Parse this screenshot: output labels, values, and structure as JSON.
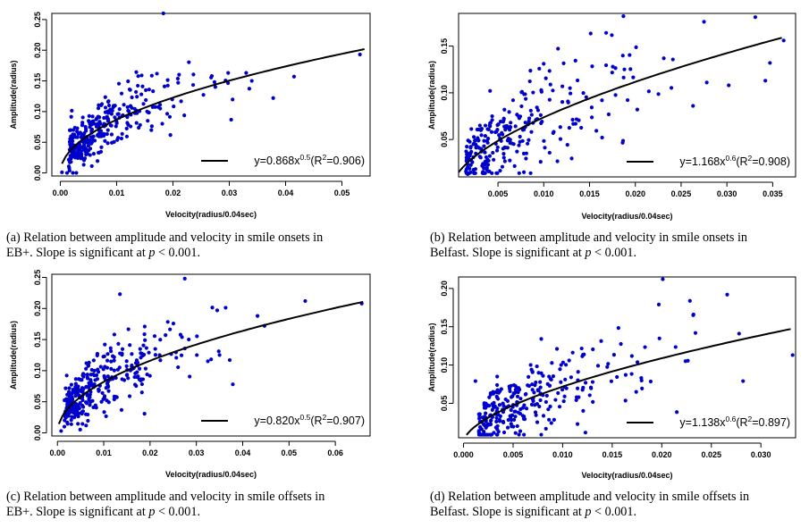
{
  "chart_data": [
    {
      "id": "a",
      "type": "scatter",
      "xlabel": "Velocity(radius/0.04sec)",
      "ylabel": "Amplitude(radius)",
      "xlim": [
        -0.0015,
        0.055
      ],
      "ylim": [
        -0.005,
        0.26
      ],
      "xticks": [
        0.0,
        0.01,
        0.02,
        0.03,
        0.04,
        0.05
      ],
      "xtick_labels": [
        "0.00",
        "0.01",
        "0.02",
        "0.03",
        "0.04",
        "0.05"
      ],
      "yticks": [
        0.0,
        0.05,
        0.1,
        0.15,
        0.2,
        0.25
      ],
      "ytick_labels": [
        "0.00",
        "0.05",
        "0.10",
        "0.15",
        "0.20",
        "0.25"
      ],
      "fit": {
        "coef": 0.868,
        "exp": 0.5
      },
      "legend": {
        "position": "bottom-right",
        "prefix": "y=0.868x",
        "power": "0.5",
        "r2_open": "(R",
        "r2_sq": "2",
        "r2_close": "=0.906)"
      },
      "point_color": "#0000cc",
      "n_points": 320,
      "seed": 11,
      "x_scale": 0.0085,
      "x_max": 0.054,
      "noise": 0.028,
      "outliers": [
        [
          0.0183,
          0.26
        ],
        [
          0.0532,
          0.193
        ],
        [
          0.0415,
          0.157
        ],
        [
          0.0378,
          0.122
        ],
        [
          0.034,
          0.15
        ],
        [
          0.033,
          0.163
        ],
        [
          0.0298,
          0.163
        ],
        [
          0.0269,
          0.158
        ],
        [
          0.0012,
          0.0
        ],
        [
          0.0003,
          0.001
        ]
      ]
    },
    {
      "id": "b",
      "type": "scatter",
      "xlabel": "Velocity(radius/0.04sec)",
      "ylabel": "Amplitude(radius)",
      "xlim": [
        0.0007,
        0.0375
      ],
      "ylim": [
        0.01,
        0.185
      ],
      "xticks": [
        0.005,
        0.01,
        0.015,
        0.02,
        0.025,
        0.03,
        0.035
      ],
      "xtick_labels": [
        "0.005",
        "0.010",
        "0.015",
        "0.020",
        "0.025",
        "0.030",
        "0.035"
      ],
      "yticks": [
        0.05,
        0.1,
        0.15
      ],
      "ytick_labels": [
        "0.05",
        "0.10",
        "0.15"
      ],
      "fit": {
        "coef": 1.168,
        "exp": 0.6
      },
      "legend": {
        "position": "bottom-right",
        "prefix": "y=1.168x",
        "power": "0.6",
        "r2_open": "(R",
        "r2_sq": "2",
        "r2_close": "=0.908)"
      },
      "point_color": "#0000cc",
      "n_points": 270,
      "seed": 23,
      "x_scale": 0.0075,
      "x_max": 0.036,
      "noise": 0.024,
      "outliers": [
        [
          0.0187,
          0.182
        ],
        [
          0.0331,
          0.181
        ],
        [
          0.0275,
          0.176
        ],
        [
          0.0362,
          0.156
        ],
        [
          0.0347,
          0.132
        ],
        [
          0.0278,
          0.111
        ],
        [
          0.0302,
          0.108
        ],
        [
          0.0342,
          0.113
        ],
        [
          0.0017,
          0.013
        ],
        [
          0.0263,
          0.086
        ]
      ]
    },
    {
      "id": "c",
      "type": "scatter",
      "xlabel": "Velocity(radius/0.04sec)",
      "ylabel": "Amplitude(radius)",
      "xlim": [
        -0.0012,
        0.0675
      ],
      "ylim": [
        -0.005,
        0.255
      ],
      "xticks": [
        0.0,
        0.01,
        0.02,
        0.03,
        0.04,
        0.05,
        0.06
      ],
      "xtick_labels": [
        "0.00",
        "0.01",
        "0.02",
        "0.03",
        "0.04",
        "0.05",
        "0.06"
      ],
      "yticks": [
        0.0,
        0.05,
        0.1,
        0.15,
        0.2,
        0.25
      ],
      "ytick_labels": [
        "0.00",
        "0.05",
        "0.10",
        "0.15",
        "0.20",
        "0.25"
      ],
      "fit": {
        "coef": 0.82,
        "exp": 0.5
      },
      "legend": {
        "position": "bottom-right",
        "prefix": "y=0.820x",
        "power": "0.5",
        "r2_open": "(R",
        "r2_sq": "2",
        "r2_close": "=0.907)"
      },
      "point_color": "#0000cc",
      "n_points": 320,
      "seed": 37,
      "x_scale": 0.01,
      "x_max": 0.066,
      "noise": 0.03,
      "outliers": [
        [
          0.0275,
          0.248
        ],
        [
          0.0135,
          0.223
        ],
        [
          0.0657,
          0.208
        ],
        [
          0.0535,
          0.212
        ],
        [
          0.0432,
          0.188
        ],
        [
          0.0345,
          0.197
        ],
        [
          0.0447,
          0.172
        ],
        [
          0.0372,
          0.117
        ],
        [
          0.0008,
          0.003
        ],
        [
          0.0015,
          0.01
        ]
      ]
    },
    {
      "id": "d",
      "type": "scatter",
      "xlabel": "Velocity(radius/0.04sec)",
      "ylabel": "Amplitude(radius)",
      "xlim": [
        -0.0005,
        0.0335
      ],
      "ylim": [
        0.005,
        0.215
      ],
      "xticks": [
        0.0,
        0.005,
        0.01,
        0.015,
        0.02,
        0.025,
        0.03
      ],
      "xtick_labels": [
        "0.000",
        "0.005",
        "0.010",
        "0.015",
        "0.020",
        "0.025",
        "0.030"
      ],
      "yticks": [
        0.05,
        0.1,
        0.15,
        0.2
      ],
      "ytick_labels": [
        "0.05",
        "0.10",
        "0.15",
        "0.20"
      ],
      "fit": {
        "coef": 1.138,
        "exp": 0.6
      },
      "legend": {
        "position": "bottom-right",
        "prefix": "y=1.138x",
        "power": "0.6",
        "r2_open": "(R",
        "r2_sq": "2",
        "r2_close": "=0.897)"
      },
      "point_color": "#0000cc",
      "n_points": 290,
      "seed": 53,
      "x_scale": 0.0072,
      "x_max": 0.033,
      "noise": 0.028,
      "outliers": [
        [
          0.0201,
          0.212
        ],
        [
          0.0266,
          0.192
        ],
        [
          0.0197,
          0.179
        ],
        [
          0.0232,
          0.166
        ],
        [
          0.0278,
          0.141
        ],
        [
          0.0332,
          0.113
        ],
        [
          0.0012,
          0.079
        ],
        [
          0.0282,
          0.079
        ],
        [
          0.0041,
          0.012
        ],
        [
          0.0034,
          0.016
        ]
      ]
    }
  ],
  "captions": [
    {
      "line1": "(a) Relation between amplitude and velocity in smile onsets in",
      "line2_pre": "EB+. Slope is significant at ",
      "p": "p",
      "line2_post": " < 0.001."
    },
    {
      "line1": "(b) Relation between amplitude and velocity in smile onsets in",
      "line2_pre": "Belfast. Slope is significant at ",
      "p": "p",
      "line2_post": " < 0.001."
    },
    {
      "line1": "(c) Relation between amplitude and velocity in smile offsets in",
      "line2_pre": "EB+. Slope is significant at ",
      "p": "p",
      "line2_post": " < 0.001."
    },
    {
      "line1": "(d) Relation between amplitude and velocity in smile offsets in",
      "line2_pre": "Belfast. Slope is significant at ",
      "p": "p",
      "line2_post": " < 0.001."
    }
  ]
}
